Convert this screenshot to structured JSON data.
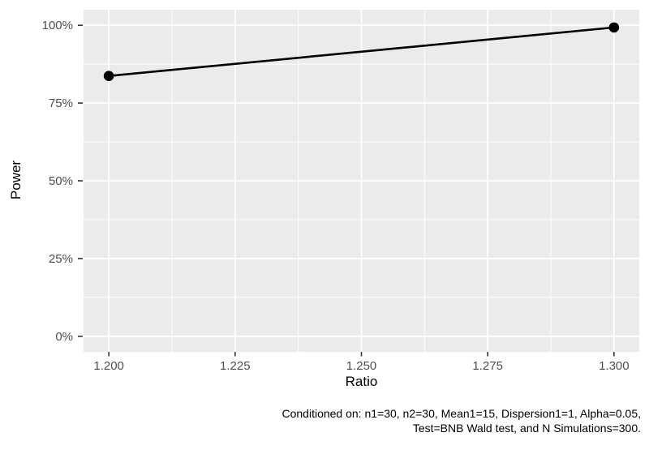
{
  "chart_data": {
    "type": "line",
    "title": "",
    "xlabel": "Ratio",
    "ylabel": "Power",
    "series": [
      {
        "name": "Power",
        "x": [
          1.2,
          1.3
        ],
        "y": [
          0.837,
          0.993
        ]
      }
    ],
    "xlim": [
      1.195,
      1.305
    ],
    "ylim": [
      -0.05,
      1.05
    ],
    "x_ticks": {
      "values": [
        1.2,
        1.225,
        1.25,
        1.275,
        1.3
      ],
      "labels": [
        "1.200",
        "1.225",
        "1.250",
        "1.275",
        "1.300"
      ]
    },
    "y_ticks": {
      "values": [
        0,
        0.25,
        0.5,
        0.75,
        1.0
      ],
      "labels": [
        "0%",
        "25%",
        "50%",
        "75%",
        "100%"
      ]
    },
    "x_minor": [
      1.2125,
      1.2375,
      1.2625,
      1.2875
    ],
    "y_minor": [
      0.125,
      0.375,
      0.625,
      0.875
    ],
    "grid": true,
    "legend_position": "none",
    "caption_line1": "Conditioned on: n1=30, n2=30, Mean1=15, Dispersion1=1, Alpha=0.05,",
    "caption_line2": "Test=BNB Wald test, and N Simulations=300.",
    "colors": {
      "panel_bg": "#EBEBEB",
      "grid": "#FFFFFF",
      "line": "#000000",
      "point": "#000000",
      "tick_mark": "#333333",
      "tick_label": "#4D4D4D",
      "axis_title": "#000000",
      "caption": "#000000",
      "background": "#FFFFFF"
    }
  }
}
